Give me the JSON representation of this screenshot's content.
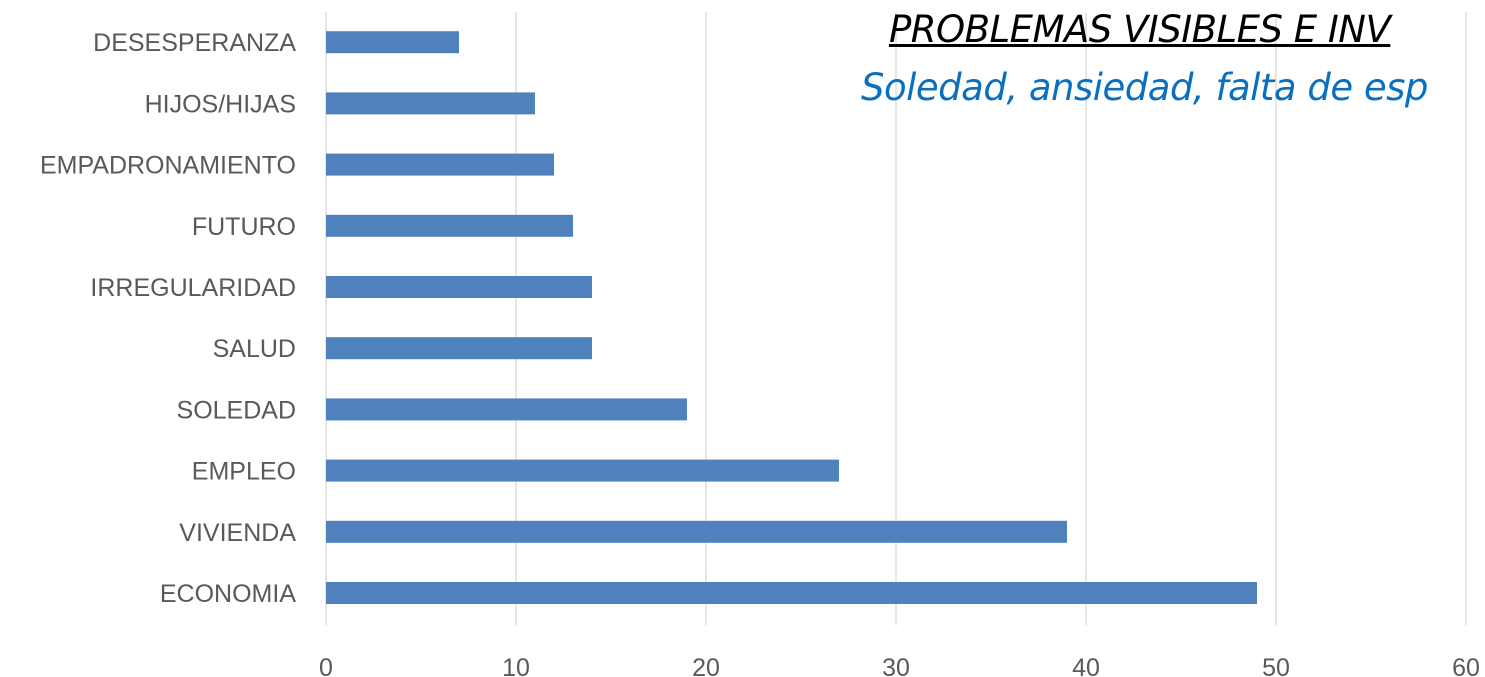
{
  "header": {
    "title": "PROBLEMAS VISIBLES E INV",
    "subtitle": "Soledad, ansiedad, falta de esp"
  },
  "chart_data": {
    "type": "bar",
    "orientation": "horizontal",
    "title": "PROBLEMAS VISIBLES E INV",
    "subtitle": "Soledad, ansiedad, falta de esp",
    "categories": [
      "ECONOMIA",
      "VIVIENDA",
      "EMPLEO",
      "SOLEDAD",
      "SALUD",
      "IRREGULARIDAD",
      "FUTURO",
      "EMPADRONAMIENTO",
      "HIJOS/HIJAS",
      "DESESPERANZA"
    ],
    "values": [
      49,
      39,
      27,
      19,
      14,
      14,
      13,
      12,
      11,
      7
    ],
    "xlim": [
      0,
      60
    ],
    "x_ticks": [
      0,
      10,
      20,
      30,
      40,
      50,
      60
    ],
    "grid": "vertical",
    "legend": "none",
    "colors": {
      "bar": "#4f81bd",
      "grid": "#d9d9d9",
      "axis_text": "#595959"
    }
  }
}
